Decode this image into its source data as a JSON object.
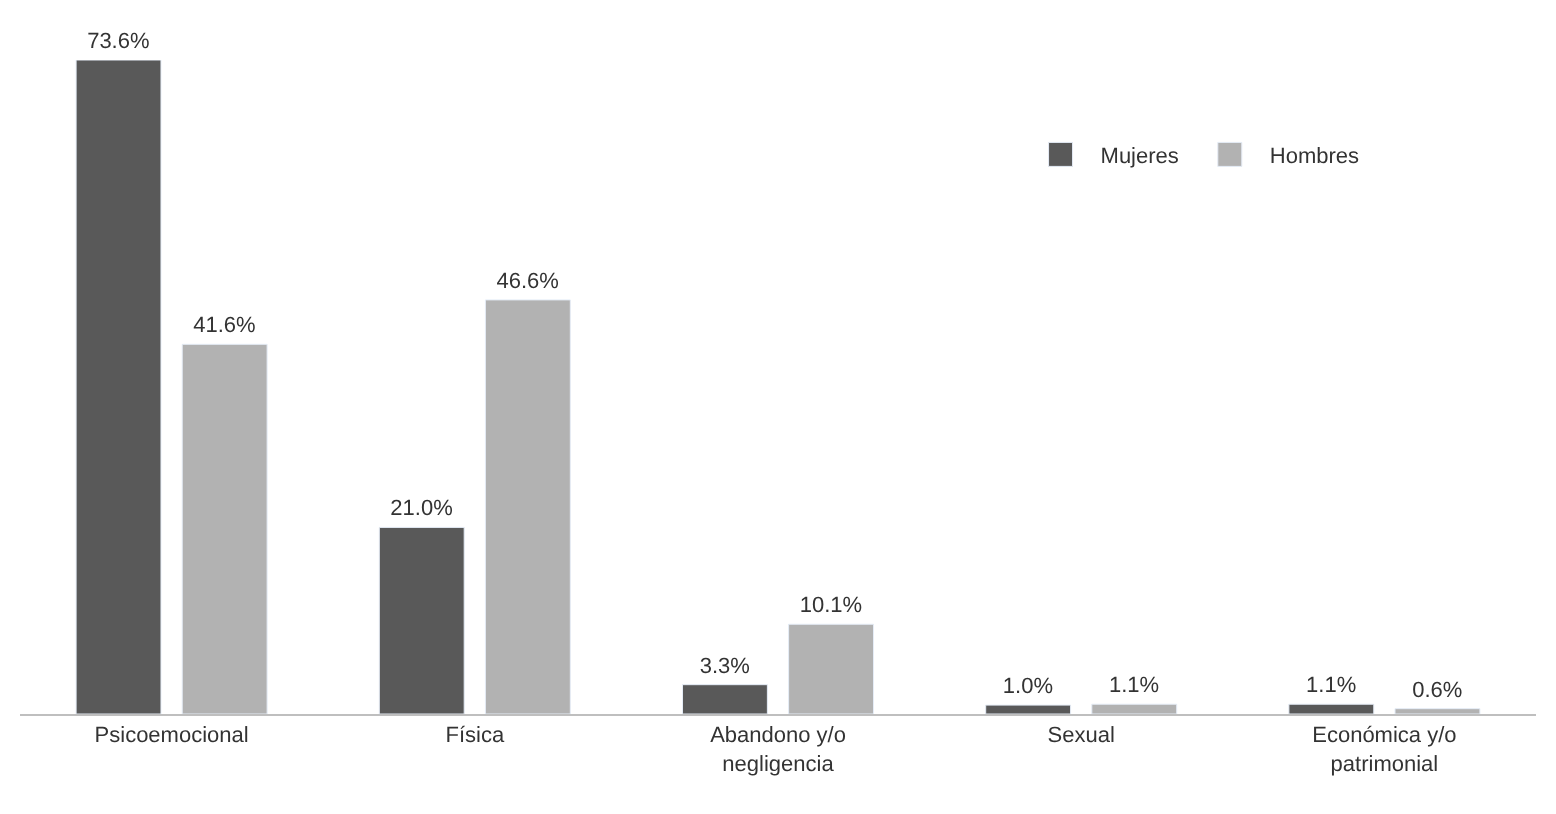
{
  "chart_data": {
    "type": "bar",
    "categories": [
      "Psicoemocional",
      "Física",
      "Abandono y/o negligencia",
      "Sexual",
      "Económica y/o patrimonial"
    ],
    "series": [
      {
        "name": "Mujeres",
        "color": "#595959",
        "values": [
          73.6,
          21.0,
          3.3,
          1.0,
          1.1
        ],
        "value_labels": [
          "73.6%",
          "21.0%",
          "3.3%",
          "1.0%",
          "1.1%"
        ]
      },
      {
        "name": "Hombres",
        "color": "#b2b2b2",
        "values": [
          41.6,
          46.6,
          10.1,
          1.1,
          0.6
        ],
        "value_labels": [
          "41.6%",
          "46.6%",
          "10.1%",
          "1.1%",
          "0.6%"
        ]
      }
    ],
    "legend": "top right"
  }
}
